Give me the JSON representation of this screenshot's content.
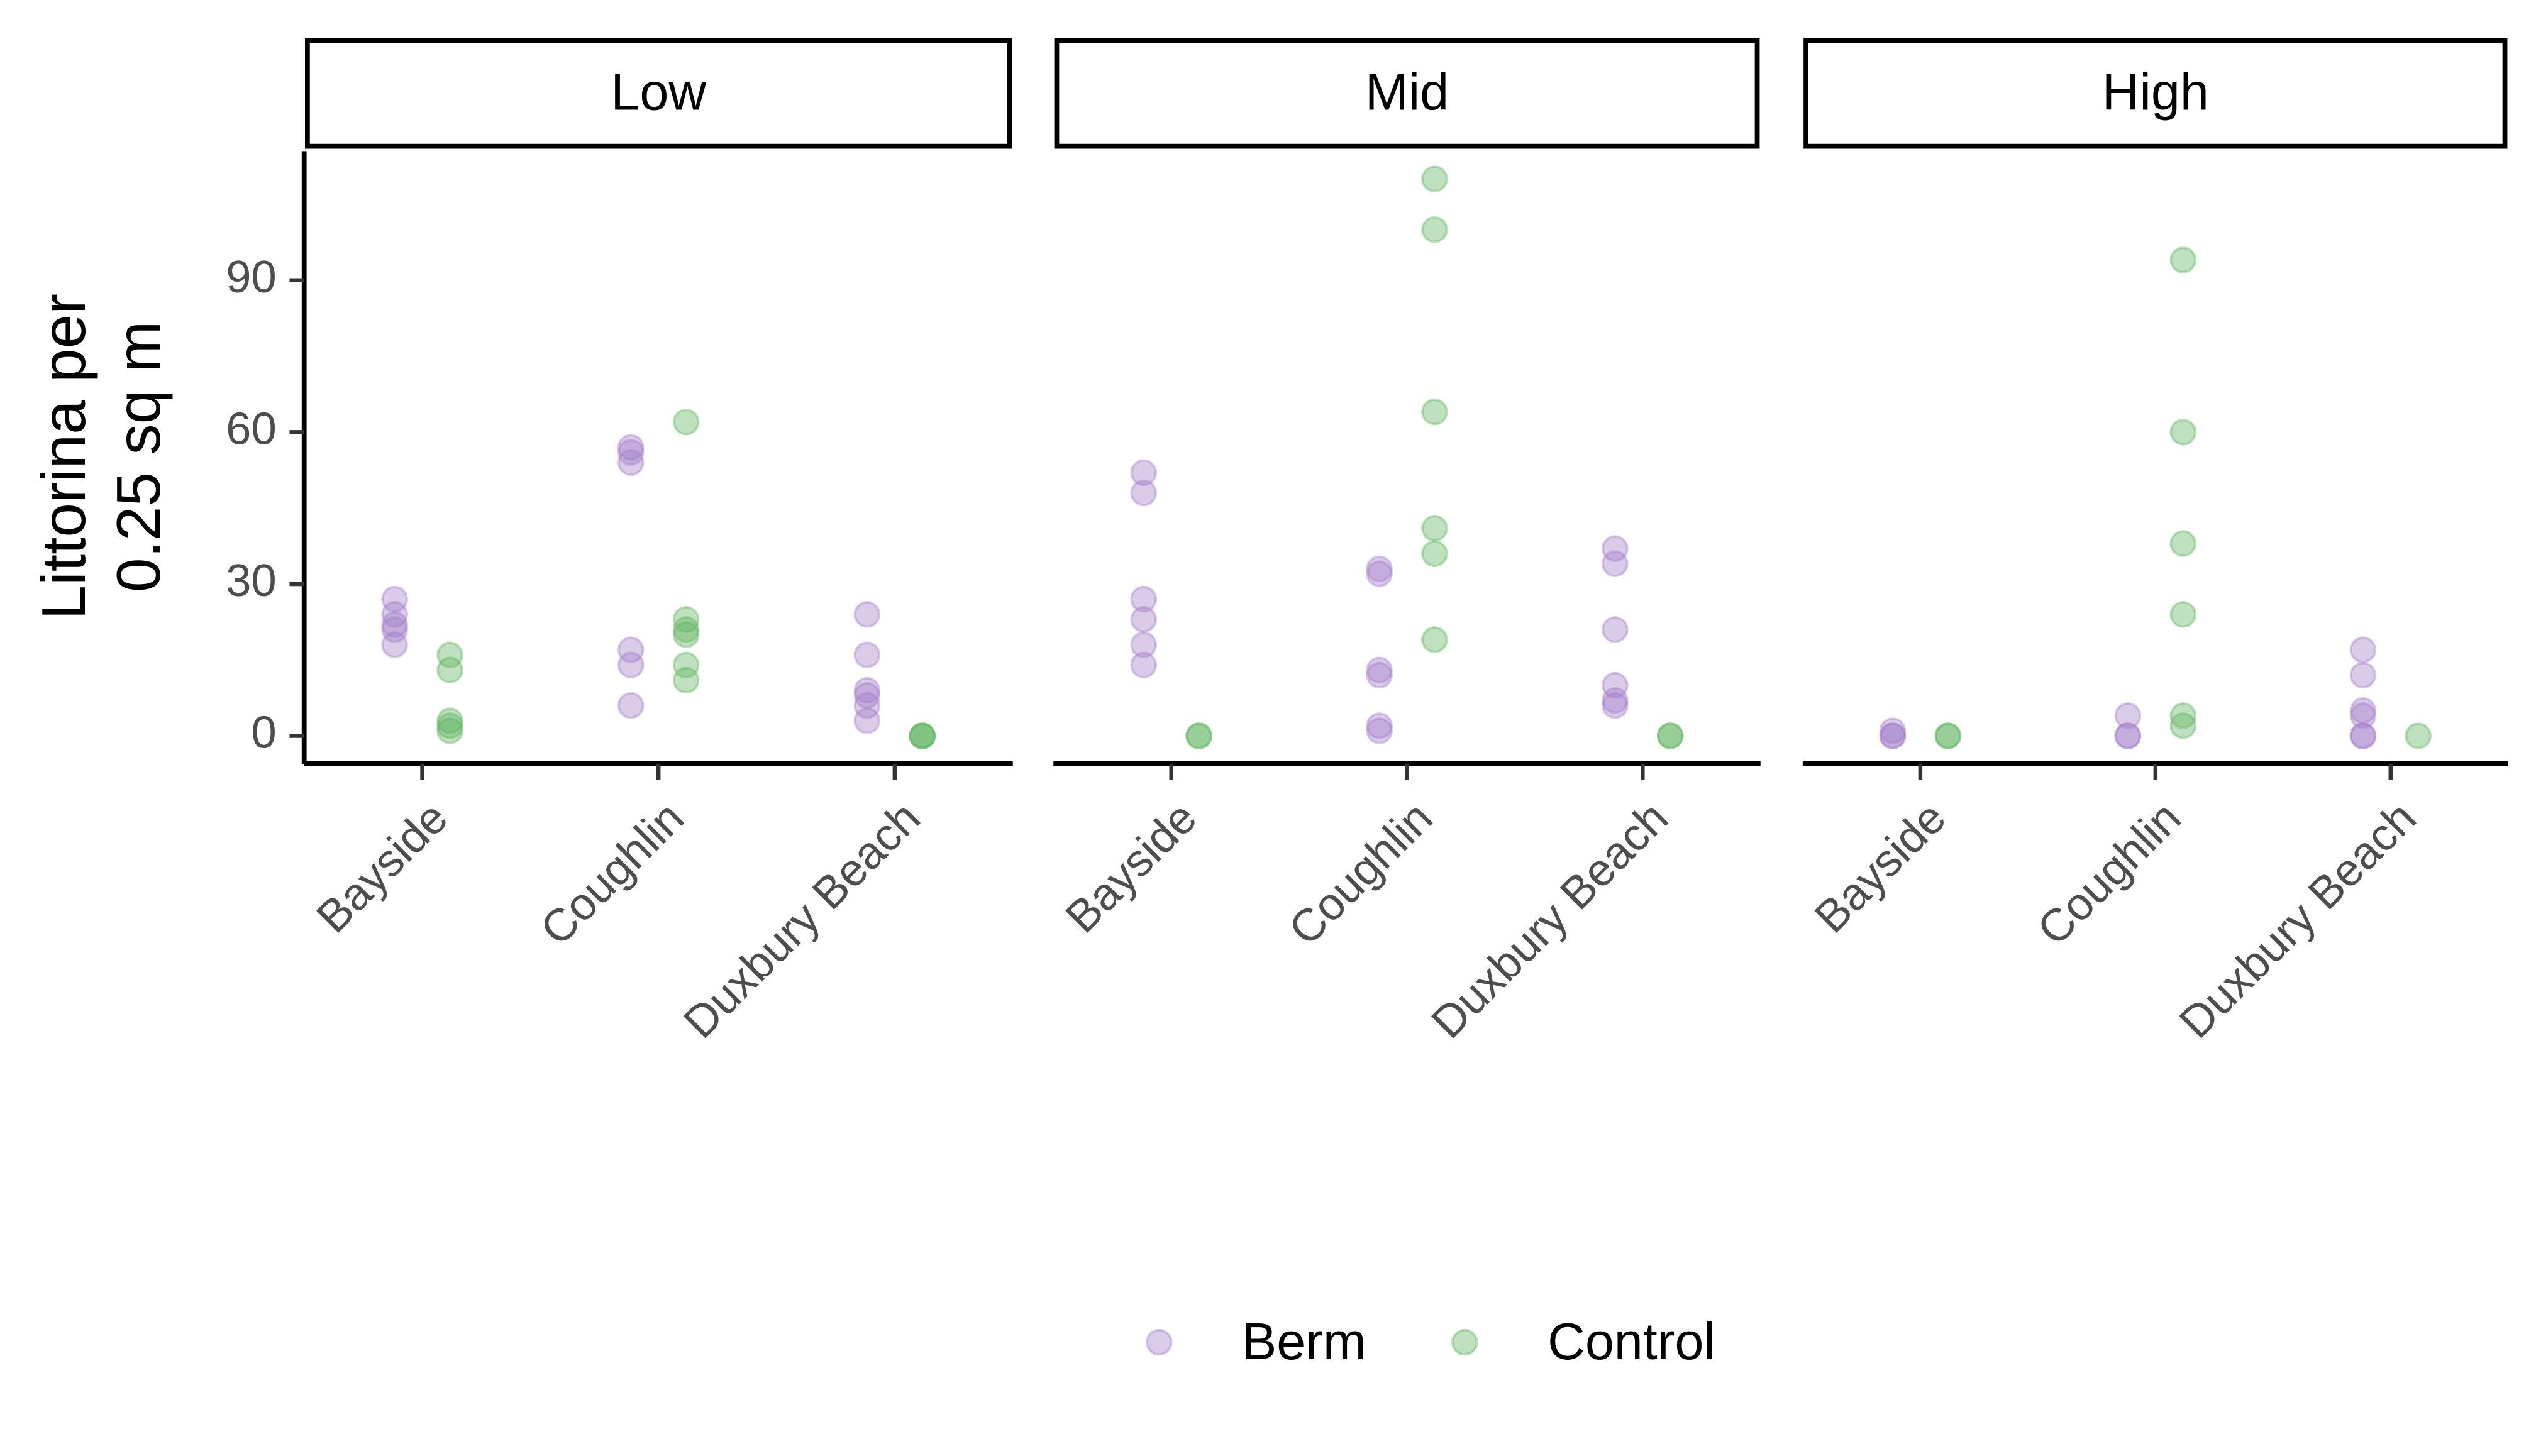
{
  "chart_data": {
    "type": "scatter",
    "y_label": [
      "Littorina per",
      "0.25 sq m"
    ],
    "ylim": [
      -5.5,
      115.5
    ],
    "yticks": [
      0,
      30,
      60,
      90
    ],
    "categories": [
      "Bayside",
      "Coughlin",
      "Duxbury Beach"
    ],
    "series": [
      {
        "name": "Berm",
        "color": "#a27cc9"
      },
      {
        "name": "Control",
        "color": "#5fb35f"
      }
    ],
    "alpha": 0.4,
    "facets": [
      {
        "title": "Low",
        "series": [
          {
            "values": [
              [
                27,
                24,
                22,
                21,
                18
              ],
              [
                57,
                56,
                54,
                17,
                14,
                6
              ],
              [
                24,
                16,
                9,
                8,
                6,
                3
              ]
            ]
          },
          {
            "values": [
              [
                16,
                13,
                3,
                2,
                1
              ],
              [
                62,
                23,
                21,
                20,
                14,
                11
              ],
              [
                0,
                0,
                0
              ]
            ]
          }
        ]
      },
      {
        "title": "Mid",
        "series": [
          {
            "values": [
              [
                52,
                48,
                27,
                23,
                18,
                14
              ],
              [
                33,
                32,
                13,
                12,
                2,
                1
              ],
              [
                37,
                34,
                21,
                10,
                7,
                6
              ]
            ]
          },
          {
            "values": [
              [
                0,
                0
              ],
              [
                110,
                100,
                64,
                41,
                36,
                19
              ],
              [
                0,
                0
              ]
            ]
          }
        ]
      },
      {
        "title": "High",
        "series": [
          {
            "values": [
              [
                1,
                0,
                0
              ],
              [
                4,
                0,
                0
              ],
              [
                17,
                12,
                5,
                4,
                0,
                0
              ]
            ]
          },
          {
            "values": [
              [
                0,
                0
              ],
              [
                94,
                60,
                38,
                24,
                4,
                2
              ],
              [
                0
              ]
            ]
          }
        ]
      }
    ]
  }
}
